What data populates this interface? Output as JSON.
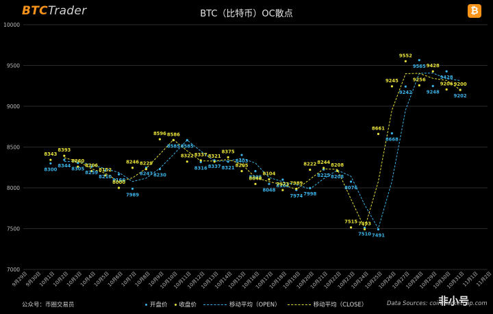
{
  "header": {
    "brand_part1": "BTC",
    "brand_part2": "Trader",
    "coin_symbol": "₿"
  },
  "footer": {
    "wechat": "公众号：币圈交易员",
    "source": "Data Sources: coinmarketcap.com",
    "watermark": "非小号"
  },
  "colors": {
    "open": "#3bb3e8",
    "close": "#e8e23a",
    "grid": "#3a3a3a",
    "axis_text": "#bdbdbd"
  },
  "chart_data": {
    "type": "scatter",
    "title": "BTC（比特币）OC散点",
    "categories": [
      "9月29日",
      "9月30日",
      "10月1日",
      "10月2日",
      "10月3日",
      "10月4日",
      "10月5日",
      "10月6日",
      "10月7日",
      "10月8日",
      "10月9日",
      "10月10日",
      "10月11日",
      "10月12日",
      "10月13日",
      "10月14日",
      "10月15日",
      "10月16日",
      "10月17日",
      "10月18日",
      "10月19日",
      "10月20日",
      "10月21日",
      "10月22日",
      "10月23日",
      "10月24日",
      "10月25日",
      "10月26日",
      "10月27日",
      "10月28日",
      "10月29日",
      "10月30日",
      "10月31日",
      "11月1日",
      "11月2日"
    ],
    "ylim": [
      7000,
      10000
    ],
    "yticks": [
      7000,
      7500,
      8000,
      8500,
      9000,
      9500,
      10000
    ],
    "grid": true,
    "legend": "bottom",
    "series": [
      {
        "name": "开盘价",
        "marker": "point",
        "x": [
          "10月1日",
          "10月2日",
          "10月3日",
          "10月4日",
          "10月5日",
          "10月6日",
          "10月7日",
          "10月8日",
          "10月9日",
          "10月10日",
          "10月11日",
          "10月12日",
          "10月13日",
          "10月14日",
          "10月15日",
          "10月16日",
          "10月17日",
          "10月18日",
          "10月19日",
          "10月20日",
          "10月21日",
          "10月22日",
          "10月23日",
          "10月24日",
          "10月25日",
          "10月26日",
          "10月27日",
          "10月28日",
          "10月29日",
          "10月30日",
          "10月31日"
        ],
        "values": [
          8300,
          8344,
          8305,
          8259,
          8210,
          8166,
          7989,
          8247,
          8230,
          8585,
          8585,
          8316,
          8337,
          8321,
          8403,
          8205,
          8048,
          8101,
          7974,
          7998,
          8225,
          8208,
          8076,
          7510,
          7491,
          8668,
          9242,
          9565,
          9248,
          9428,
          9202
        ]
      },
      {
        "name": "收盘价",
        "marker": "point",
        "x": [
          "10月1日",
          "10月2日",
          "10月3日",
          "10月4日",
          "10月5日",
          "10月6日",
          "10月7日",
          "10月8日",
          "10月9日",
          "10月10日",
          "10月11日",
          "10月12日",
          "10月13日",
          "10月14日",
          "10月15日",
          "10月16日",
          "10月17日",
          "10月18日",
          "10月19日",
          "10月20日",
          "10月21日",
          "10月22日",
          "10月23日",
          "10月24日",
          "10月25日",
          "10月26日",
          "10月27日",
          "10月28日",
          "10月29日",
          "10月30日",
          "10月31日"
        ],
        "values": [
          8343,
          8393,
          8260,
          8206,
          8152,
          8000,
          8246,
          8229,
          8596,
          8586,
          8322,
          8337,
          8321,
          8375,
          8205,
          8048,
          8104,
          7973,
          7989,
          8222,
          8244,
          8208,
          7515,
          7493,
          8661,
          9245,
          9552,
          9256,
          9428,
          9206,
          9200
        ]
      },
      {
        "name": "移动平均（OPEN）",
        "marker": "line",
        "x": [
          "10月2日",
          "10月3日",
          "10月4日",
          "10月5日",
          "10月6日",
          "10月7日",
          "10月8日",
          "10月9日",
          "10月10日",
          "10月11日",
          "10月12日",
          "10月13日",
          "10月14日",
          "10月15日",
          "10月16日",
          "10月17日",
          "10月18日",
          "10月19日",
          "10月20日",
          "10月21日",
          "10月22日",
          "10月23日",
          "10月24日",
          "10月25日",
          "10月26日",
          "10月27日",
          "10月28日",
          "10月29日",
          "10月30日",
          "10月31日"
        ],
        "values": [
          8322,
          8325,
          8282,
          8235,
          8188,
          8078,
          8118,
          8239,
          8408,
          8585,
          8451,
          8327,
          8329,
          8362,
          8304,
          8127,
          8075,
          8038,
          7986,
          8112,
          8217,
          8142,
          7793,
          7501,
          8080,
          8955,
          9404,
          9407,
          9338,
          9315
        ]
      },
      {
        "name": "移动平均（CLOSE）",
        "marker": "line",
        "x": [
          "10月2日",
          "10月3日",
          "10月4日",
          "10月5日",
          "10月6日",
          "10月7日",
          "10月8日",
          "10月9日",
          "10月10日",
          "10月11日",
          "10月12日",
          "10月13日",
          "10月14日",
          "10月15日",
          "10月16日",
          "10月17日",
          "10月18日",
          "10月19日",
          "10月20日",
          "10月21日",
          "10月22日",
          "10月23日",
          "10月24日",
          "10月25日",
          "10月26日",
          "10月27日",
          "10月28日",
          "10月29日",
          "10月30日",
          "10月31日"
        ],
        "values": [
          8368,
          8327,
          8233,
          8179,
          8076,
          8123,
          8238,
          8413,
          8591,
          8454,
          8330,
          8329,
          8348,
          8290,
          8127,
          8076,
          8039,
          7981,
          8106,
          8233,
          8226,
          7862,
          7504,
          8077,
          8953,
          9399,
          9404,
          9342,
          9317,
          9203
        ]
      }
    ]
  }
}
